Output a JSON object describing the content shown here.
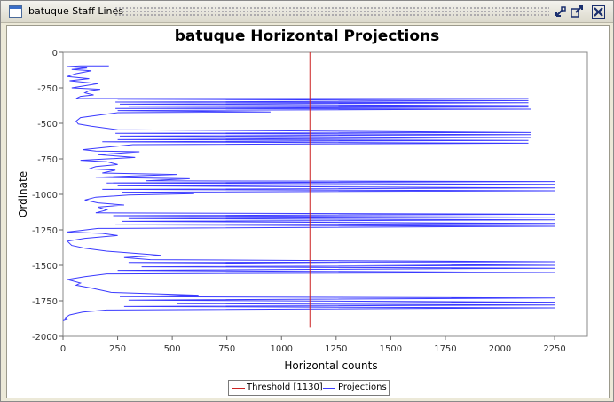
{
  "window": {
    "title": "batuque Staff Lines"
  },
  "icons": {
    "app": "window-icon",
    "undock": "undock-icon",
    "maximize": "maximize-icon",
    "close": "close-icon"
  },
  "colors": {
    "projection": "#3a3aff",
    "threshold": "#cc2222",
    "grid": "#d0d0d0"
  },
  "chart_data": {
    "type": "line",
    "title": "batuque Horizontal Projections",
    "xlabel": "Horizontal counts",
    "ylabel": "Ordinate",
    "xlim": [
      0,
      2400
    ],
    "ylim": [
      0,
      2000
    ],
    "y_inverted": true,
    "grid": true,
    "legend_placement": "bottom-center",
    "x_ticks": [
      "0",
      "250",
      "500",
      "750",
      "1000",
      "1250",
      "1500",
      "1750",
      "2000",
      "2250"
    ],
    "y_ticks": [
      "0",
      "-250",
      "-500",
      "-750",
      "-1000",
      "-1250",
      "-1500",
      "-1750",
      "-2000"
    ],
    "legend": [
      "Threshold [1130]",
      "Projections"
    ],
    "threshold": {
      "name": "Threshold [1130]",
      "x": 1130,
      "y_range": [
        0,
        1940
      ]
    },
    "series": [
      {
        "name": "Projections",
        "points": [
          [
            210,
            95
          ],
          [
            80,
            95
          ],
          [
            20,
            100
          ],
          [
            110,
            110
          ],
          [
            40,
            120
          ],
          [
            130,
            130
          ],
          [
            60,
            150
          ],
          [
            20,
            170
          ],
          [
            120,
            185
          ],
          [
            30,
            200
          ],
          [
            160,
            220
          ],
          [
            100,
            235
          ],
          [
            40,
            250
          ],
          [
            170,
            260
          ],
          [
            120,
            270
          ],
          [
            100,
            285
          ],
          [
            140,
            300
          ],
          [
            80,
            310
          ],
          [
            60,
            325
          ],
          [
            2130,
            325
          ],
          [
            250,
            330
          ],
          [
            2130,
            340
          ],
          [
            240,
            350
          ],
          [
            2130,
            355
          ],
          [
            260,
            365
          ],
          [
            2130,
            375
          ],
          [
            300,
            380
          ],
          [
            2130,
            385
          ],
          [
            240,
            395
          ],
          [
            2140,
            400
          ],
          [
            250,
            410
          ],
          [
            950,
            420
          ],
          [
            250,
            425
          ],
          [
            150,
            445
          ],
          [
            80,
            460
          ],
          [
            60,
            485
          ],
          [
            70,
            505
          ],
          [
            130,
            520
          ],
          [
            250,
            545
          ],
          [
            2140,
            565
          ],
          [
            240,
            570
          ],
          [
            2140,
            580
          ],
          [
            260,
            590
          ],
          [
            2140,
            600
          ],
          [
            250,
            615
          ],
          [
            2130,
            620
          ],
          [
            180,
            630
          ],
          [
            2130,
            640
          ],
          [
            320,
            650
          ],
          [
            220,
            665
          ],
          [
            90,
            685
          ],
          [
            150,
            695
          ],
          [
            350,
            700
          ],
          [
            160,
            720
          ],
          [
            330,
            740
          ],
          [
            80,
            760
          ],
          [
            200,
            770
          ],
          [
            250,
            790
          ],
          [
            150,
            805
          ],
          [
            120,
            820
          ],
          [
            240,
            830
          ],
          [
            180,
            850
          ],
          [
            520,
            860
          ],
          [
            150,
            880
          ],
          [
            580,
            890
          ],
          [
            380,
            905
          ],
          [
            2250,
            910
          ],
          [
            200,
            920
          ],
          [
            2250,
            930
          ],
          [
            250,
            940
          ],
          [
            2250,
            955
          ],
          [
            180,
            965
          ],
          [
            2250,
            975
          ],
          [
            270,
            985
          ],
          [
            600,
            995
          ],
          [
            300,
            1005
          ],
          [
            150,
            1020
          ],
          [
            100,
            1040
          ],
          [
            160,
            1060
          ],
          [
            280,
            1075
          ],
          [
            160,
            1090
          ],
          [
            200,
            1110
          ],
          [
            150,
            1130
          ],
          [
            2250,
            1140
          ],
          [
            230,
            1150
          ],
          [
            2250,
            1160
          ],
          [
            300,
            1170
          ],
          [
            2250,
            1180
          ],
          [
            270,
            1190
          ],
          [
            2250,
            1205
          ],
          [
            240,
            1215
          ],
          [
            2250,
            1225
          ],
          [
            160,
            1240
          ],
          [
            80,
            1255
          ],
          [
            20,
            1265
          ],
          [
            180,
            1275
          ],
          [
            250,
            1290
          ],
          [
            100,
            1310
          ],
          [
            20,
            1330
          ],
          [
            40,
            1360
          ],
          [
            100,
            1380
          ],
          [
            200,
            1400
          ],
          [
            450,
            1430
          ],
          [
            280,
            1445
          ],
          [
            400,
            1460
          ],
          [
            2250,
            1475
          ],
          [
            300,
            1480
          ],
          [
            2250,
            1500
          ],
          [
            360,
            1510
          ],
          [
            2250,
            1520
          ],
          [
            250,
            1535
          ],
          [
            2250,
            1550
          ],
          [
            200,
            1560
          ],
          [
            100,
            1580
          ],
          [
            20,
            1600
          ],
          [
            80,
            1625
          ],
          [
            60,
            1640
          ],
          [
            130,
            1660
          ],
          [
            220,
            1690
          ],
          [
            620,
            1710
          ],
          [
            260,
            1720
          ],
          [
            2250,
            1730
          ],
          [
            300,
            1745
          ],
          [
            2250,
            1760
          ],
          [
            520,
            1770
          ],
          [
            2250,
            1780
          ],
          [
            280,
            1790
          ],
          [
            2250,
            1800
          ],
          [
            200,
            1815
          ],
          [
            90,
            1830
          ],
          [
            30,
            1850
          ],
          [
            10,
            1870
          ],
          [
            20,
            1880
          ],
          [
            0,
            1890
          ]
        ]
      }
    ]
  }
}
